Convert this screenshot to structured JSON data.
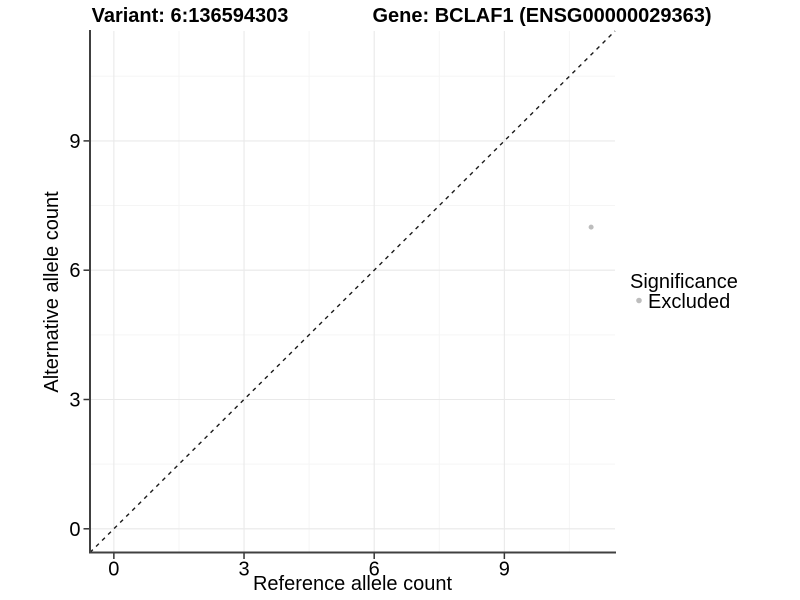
{
  "chart_data": {
    "type": "scatter",
    "titles": {
      "left": "Variant: 6:136594303",
      "right": "Gene: BCLAF1 (ENSG00000029363)"
    },
    "xlabel": "Reference allele count",
    "ylabel": "Alternative allele count",
    "xlim": [
      -0.55,
      11.55
    ],
    "ylim": [
      -0.55,
      11.55
    ],
    "x_major_ticks": [
      0,
      3,
      6,
      9
    ],
    "y_major_ticks": [
      0,
      3,
      6,
      9
    ],
    "x_minor_gridlines": [
      1.5,
      4.5,
      7.5,
      10.5
    ],
    "y_minor_gridlines": [
      1.5,
      4.5,
      7.5,
      10.5
    ],
    "grid": "major+minor",
    "points": [
      {
        "x": 11,
        "y": 7,
        "significance": "Excluded"
      }
    ],
    "identity_line": {
      "slope": 1,
      "intercept": 0,
      "style": "dashed",
      "color": "#1a1a1a"
    },
    "legend": {
      "title": "Significance",
      "position": "right",
      "items": [
        {
          "label": "Excluded",
          "color": "#bdbdbd"
        }
      ]
    }
  }
}
